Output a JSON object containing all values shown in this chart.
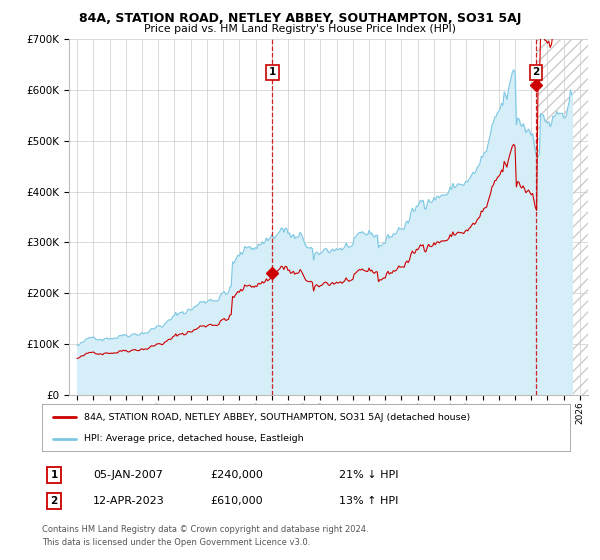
{
  "title": "84A, STATION ROAD, NETLEY ABBEY, SOUTHAMPTON, SO31 5AJ",
  "subtitle": "Price paid vs. HM Land Registry's House Price Index (HPI)",
  "ylim": [
    0,
    700000
  ],
  "yticks": [
    0,
    100000,
    200000,
    300000,
    400000,
    500000,
    600000,
    700000
  ],
  "sale1_x": 2007.04,
  "sale1_price": 240000,
  "sale1_label": "05-JAN-2007",
  "sale1_pct": "21% ↓ HPI",
  "sale2_x": 2023.29,
  "sale2_price": 610000,
  "sale2_label": "12-APR-2023",
  "sale2_pct": "13% ↑ HPI",
  "legend_line1": "84A, STATION ROAD, NETLEY ABBEY, SOUTHAMPTON, SO31 5AJ (detached house)",
  "legend_line2": "HPI: Average price, detached house, Eastleigh",
  "footnote1": "Contains HM Land Registry data © Crown copyright and database right 2024.",
  "footnote2": "This data is licensed under the Open Government Licence v3.0.",
  "red_color": "#cc0000",
  "blue_color": "#7ec8e3",
  "blue_fill": "#d6eef8",
  "grid_color": "#cccccc",
  "hatch_color": "#cccccc",
  "bg_color": "#ffffff"
}
